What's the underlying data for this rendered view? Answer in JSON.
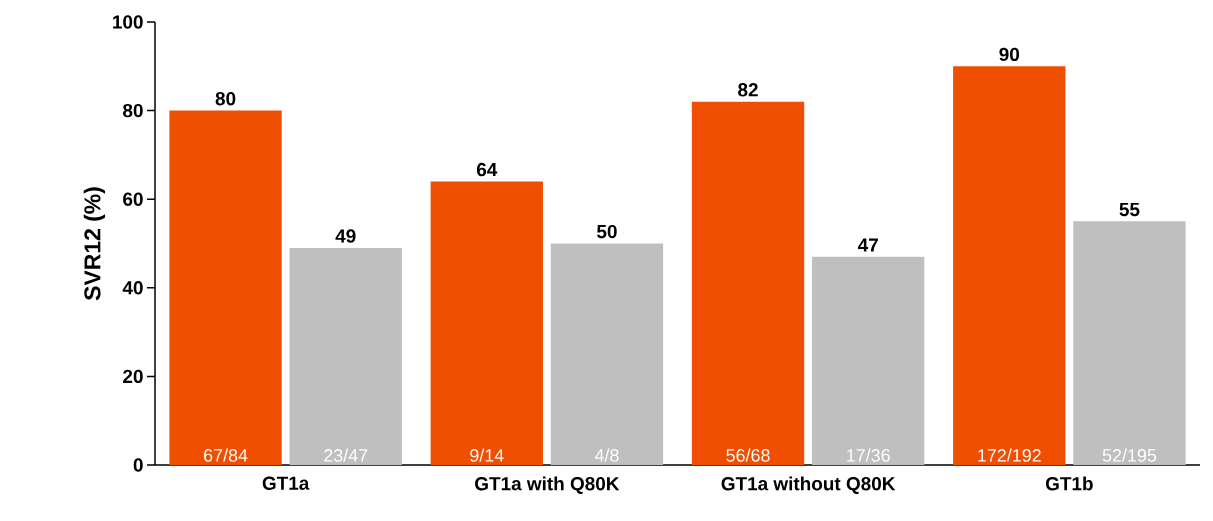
{
  "chart_data": {
    "type": "bar",
    "ylabel": "SVR12 (%)",
    "categories": [
      "GT1a",
      "GT1a with Q80K",
      "GT1a without Q80K",
      "GT1b"
    ],
    "series": [
      {
        "color": "#f04e00",
        "values": [
          80,
          64,
          82,
          90
        ]
      },
      {
        "color": "#bfbfbf",
        "values": [
          49,
          50,
          47,
          55
        ]
      }
    ],
    "annotations": [
      "67/84",
      "23/47",
      "9/14",
      "4/8",
      "56/68",
      "17/36",
      "172/192",
      "52/195"
    ],
    "ylim": [
      0,
      100
    ],
    "yticks": [
      0,
      20,
      40,
      60,
      80,
      100
    ],
    "data_labels": true,
    "grid": false
  }
}
